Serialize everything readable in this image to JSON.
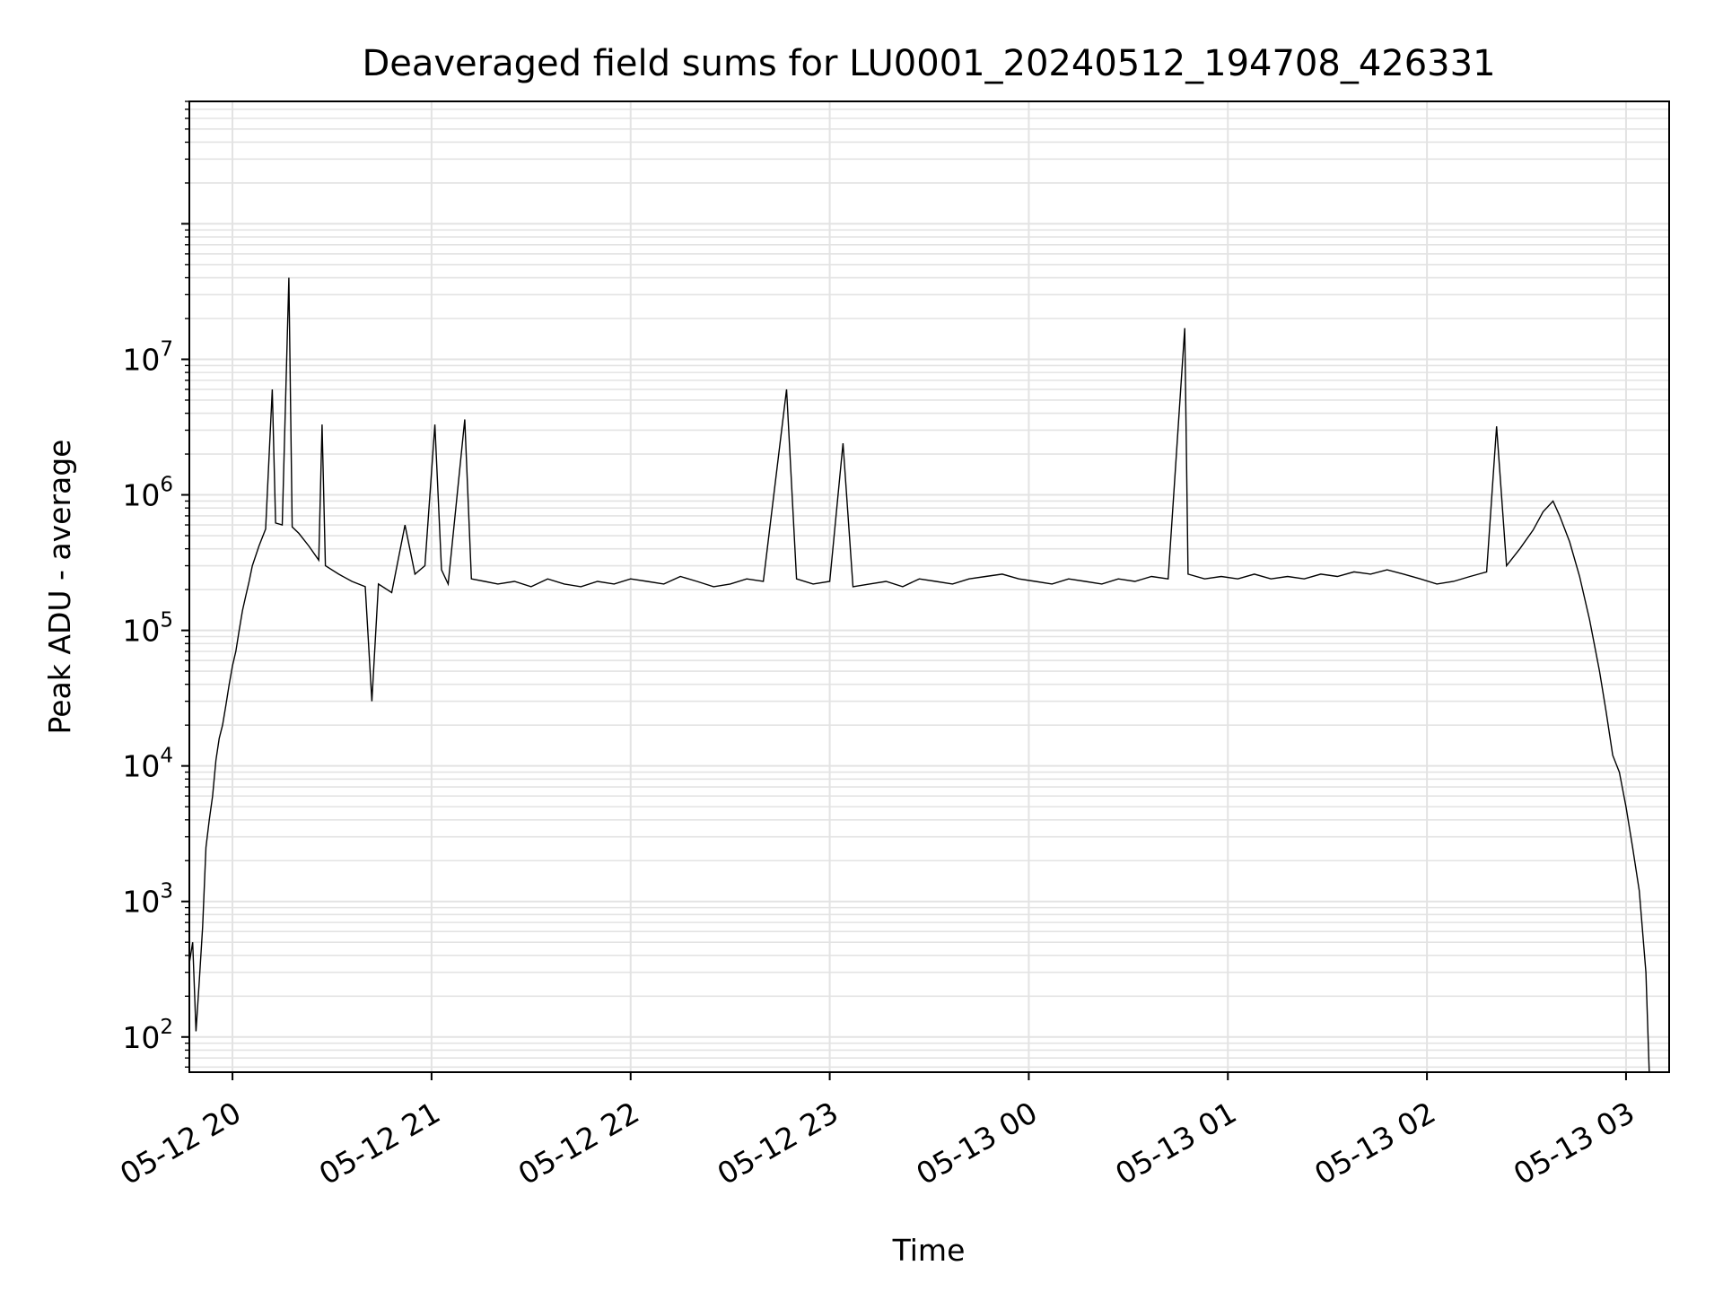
{
  "chart_data": {
    "type": "line",
    "title": "Deaveraged field sums for LU0001_20240512_194708_426331",
    "xlabel": "Time",
    "ylabel": "Peak ADU - average",
    "yscale": "log",
    "ylim": [
      55,
      800000000
    ],
    "xlim": [
      "2024-05-12 19:47",
      "2024-05-13 03:13"
    ],
    "x_ticks": [
      "05-12 20",
      "05-12 21",
      "05-12 22",
      "05-12 23",
      "05-13 00",
      "05-13 01",
      "05-13 02",
      "05-13 03"
    ],
    "y_ticks": [
      {
        "value": 100,
        "label": "10^2"
      },
      {
        "value": 1000,
        "label": "10^3"
      },
      {
        "value": 10000,
        "label": "10^4"
      },
      {
        "value": 100000,
        "label": "10^5"
      },
      {
        "value": 1000000,
        "label": "10^6"
      },
      {
        "value": 10000000,
        "label": "10^7"
      }
    ],
    "grid": true,
    "line_color": "#000000",
    "series": [
      {
        "points": [
          [
            "2024-05-12 19:47",
            350
          ],
          [
            "2024-05-12 19:48",
            500
          ],
          [
            "2024-05-12 19:49",
            110
          ],
          [
            "2024-05-12 19:50",
            260
          ],
          [
            "2024-05-12 19:51",
            650
          ],
          [
            "2024-05-12 19:52",
            2500
          ],
          [
            "2024-05-12 19:53",
            4000
          ],
          [
            "2024-05-12 19:54",
            6000
          ],
          [
            "2024-05-12 19:55",
            11000
          ],
          [
            "2024-05-12 19:56",
            16000
          ],
          [
            "2024-05-12 19:57",
            20000
          ],
          [
            "2024-05-12 19:58",
            28000
          ],
          [
            "2024-05-12 19:59",
            40000
          ],
          [
            "2024-05-12 20:00",
            55000
          ],
          [
            "2024-05-12 20:01",
            70000
          ],
          [
            "2024-05-12 20:02",
            100000
          ],
          [
            "2024-05-12 20:03",
            140000
          ],
          [
            "2024-05-12 20:04",
            180000
          ],
          [
            "2024-05-12 20:05",
            230000
          ],
          [
            "2024-05-12 20:06",
            300000
          ],
          [
            "2024-05-12 20:08",
            420000
          ],
          [
            "2024-05-12 20:10",
            560000
          ],
          [
            "2024-05-12 20:12",
            6000000
          ],
          [
            "2024-05-12 20:13",
            620000
          ],
          [
            "2024-05-12 20:15",
            600000
          ],
          [
            "2024-05-12 20:17",
            40000000
          ],
          [
            "2024-05-12 20:18",
            580000
          ],
          [
            "2024-05-12 20:20",
            520000
          ],
          [
            "2024-05-12 20:23",
            420000
          ],
          [
            "2024-05-12 20:26",
            330000
          ],
          [
            "2024-05-12 20:27",
            3300000
          ],
          [
            "2024-05-12 20:28",
            300000
          ],
          [
            "2024-05-12 20:32",
            260000
          ],
          [
            "2024-05-12 20:36",
            230000
          ],
          [
            "2024-05-12 20:40",
            210000
          ],
          [
            "2024-05-12 20:42",
            30000
          ],
          [
            "2024-05-12 20:44",
            220000
          ],
          [
            "2024-05-12 20:48",
            190000
          ],
          [
            "2024-05-12 20:52",
            600000
          ],
          [
            "2024-05-12 20:55",
            260000
          ],
          [
            "2024-05-12 20:58",
            300000
          ],
          [
            "2024-05-12 21:01",
            3300000
          ],
          [
            "2024-05-12 21:03",
            280000
          ],
          [
            "2024-05-12 21:05",
            220000
          ],
          [
            "2024-05-12 21:10",
            3600000
          ],
          [
            "2024-05-12 21:12",
            240000
          ],
          [
            "2024-05-12 21:16",
            230000
          ],
          [
            "2024-05-12 21:20",
            220000
          ],
          [
            "2024-05-12 21:25",
            230000
          ],
          [
            "2024-05-12 21:30",
            210000
          ],
          [
            "2024-05-12 21:35",
            240000
          ],
          [
            "2024-05-12 21:40",
            220000
          ],
          [
            "2024-05-12 21:45",
            210000
          ],
          [
            "2024-05-12 21:50",
            230000
          ],
          [
            "2024-05-12 21:55",
            220000
          ],
          [
            "2024-05-12 22:00",
            240000
          ],
          [
            "2024-05-12 22:05",
            230000
          ],
          [
            "2024-05-12 22:10",
            220000
          ],
          [
            "2024-05-12 22:15",
            250000
          ],
          [
            "2024-05-12 22:20",
            230000
          ],
          [
            "2024-05-12 22:25",
            210000
          ],
          [
            "2024-05-12 22:30",
            220000
          ],
          [
            "2024-05-12 22:35",
            240000
          ],
          [
            "2024-05-12 22:40",
            230000
          ],
          [
            "2024-05-12 22:47",
            6000000
          ],
          [
            "2024-05-12 22:50",
            240000
          ],
          [
            "2024-05-12 22:55",
            220000
          ],
          [
            "2024-05-12 23:00",
            230000
          ],
          [
            "2024-05-12 23:04",
            2400000
          ],
          [
            "2024-05-12 23:07",
            210000
          ],
          [
            "2024-05-12 23:12",
            220000
          ],
          [
            "2024-05-12 23:17",
            230000
          ],
          [
            "2024-05-12 23:22",
            210000
          ],
          [
            "2024-05-12 23:27",
            240000
          ],
          [
            "2024-05-12 23:32",
            230000
          ],
          [
            "2024-05-12 23:37",
            220000
          ],
          [
            "2024-05-12 23:42",
            240000
          ],
          [
            "2024-05-12 23:47",
            250000
          ],
          [
            "2024-05-12 23:52",
            260000
          ],
          [
            "2024-05-12 23:57",
            240000
          ],
          [
            "2024-05-13 00:02",
            230000
          ],
          [
            "2024-05-13 00:07",
            220000
          ],
          [
            "2024-05-13 00:12",
            240000
          ],
          [
            "2024-05-13 00:17",
            230000
          ],
          [
            "2024-05-13 00:22",
            220000
          ],
          [
            "2024-05-13 00:27",
            240000
          ],
          [
            "2024-05-13 00:32",
            230000
          ],
          [
            "2024-05-13 00:37",
            250000
          ],
          [
            "2024-05-13 00:42",
            240000
          ],
          [
            "2024-05-13 00:47",
            17000000
          ],
          [
            "2024-05-13 00:48",
            260000
          ],
          [
            "2024-05-13 00:53",
            240000
          ],
          [
            "2024-05-13 00:58",
            250000
          ],
          [
            "2024-05-13 01:03",
            240000
          ],
          [
            "2024-05-13 01:08",
            260000
          ],
          [
            "2024-05-13 01:13",
            240000
          ],
          [
            "2024-05-13 01:18",
            250000
          ],
          [
            "2024-05-13 01:23",
            240000
          ],
          [
            "2024-05-13 01:28",
            260000
          ],
          [
            "2024-05-13 01:33",
            250000
          ],
          [
            "2024-05-13 01:38",
            270000
          ],
          [
            "2024-05-13 01:43",
            260000
          ],
          [
            "2024-05-13 01:48",
            280000
          ],
          [
            "2024-05-13 01:53",
            260000
          ],
          [
            "2024-05-13 01:58",
            240000
          ],
          [
            "2024-05-13 02:03",
            220000
          ],
          [
            "2024-05-13 02:08",
            230000
          ],
          [
            "2024-05-13 02:13",
            250000
          ],
          [
            "2024-05-13 02:18",
            270000
          ],
          [
            "2024-05-13 02:21",
            3200000
          ],
          [
            "2024-05-13 02:24",
            300000
          ],
          [
            "2024-05-13 02:28",
            400000
          ],
          [
            "2024-05-13 02:32",
            550000
          ],
          [
            "2024-05-13 02:35",
            750000
          ],
          [
            "2024-05-13 02:38",
            900000
          ],
          [
            "2024-05-13 02:40",
            700000
          ],
          [
            "2024-05-13 02:43",
            450000
          ],
          [
            "2024-05-13 02:46",
            250000
          ],
          [
            "2024-05-13 02:49",
            120000
          ],
          [
            "2024-05-13 02:52",
            50000
          ],
          [
            "2024-05-13 02:54",
            25000
          ],
          [
            "2024-05-13 02:56",
            12000
          ],
          [
            "2024-05-13 02:58",
            9000
          ],
          [
            "2024-05-13 03:00",
            5000
          ],
          [
            "2024-05-13 03:02",
            2500
          ],
          [
            "2024-05-13 03:04",
            1200
          ],
          [
            "2024-05-13 03:05",
            600
          ],
          [
            "2024-05-13 03:06",
            300
          ],
          [
            "2024-05-13 03:07",
            55
          ]
        ]
      }
    ]
  }
}
